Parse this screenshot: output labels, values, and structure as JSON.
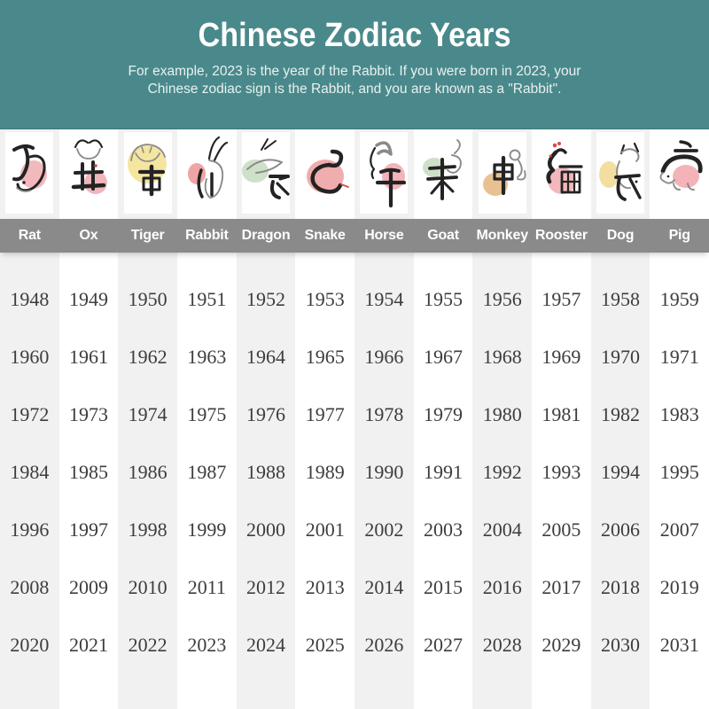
{
  "header": {
    "title": "Chinese Zodiac Years",
    "subtitle_line1": "For example, 2023 is the year of the Rabbit. If you were born in 2023, your",
    "subtitle_line2": "Chinese zodiac sign is the Rabbit, and you are known as a \"Rabbit\"."
  },
  "zodiac": {
    "animals": [
      {
        "name": "Rat",
        "character": "子",
        "blob_color": "#f2b9bd"
      },
      {
        "name": "Ox",
        "character": "丑",
        "blob_color": "#f0b6bb"
      },
      {
        "name": "Tiger",
        "character": "寅",
        "blob_color": "#f4e5a0"
      },
      {
        "name": "Rabbit",
        "character": "卯",
        "blob_color": "#efa5a5"
      },
      {
        "name": "Dragon",
        "character": "辰",
        "blob_color": "#cfe0c8"
      },
      {
        "name": "Snake",
        "character": "巳",
        "blob_color": "#efadad"
      },
      {
        "name": "Horse",
        "character": "午",
        "blob_color": "#f2b4b8"
      },
      {
        "name": "Goat",
        "character": "未",
        "blob_color": "#cfe0c8"
      },
      {
        "name": "Monkey",
        "character": "申",
        "blob_color": "#e8c193"
      },
      {
        "name": "Rooster",
        "character": "酉",
        "blob_color": "#f3b8bc"
      },
      {
        "name": "Dog",
        "character": "戌",
        "blob_color": "#f2dfa0"
      },
      {
        "name": "Pig",
        "character": "亥",
        "blob_color": "#f3b3b8"
      }
    ]
  },
  "chart_data": {
    "type": "table",
    "title": "Chinese Zodiac Years",
    "columns": [
      "Rat",
      "Ox",
      "Tiger",
      "Rabbit",
      "Dragon",
      "Snake",
      "Horse",
      "Goat",
      "Monkey",
      "Rooster",
      "Dog",
      "Pig"
    ],
    "rows": [
      [
        1948,
        1949,
        1950,
        1951,
        1952,
        1953,
        1954,
        1955,
        1956,
        1957,
        1958,
        1959
      ],
      [
        1960,
        1961,
        1962,
        1963,
        1964,
        1965,
        1966,
        1967,
        1968,
        1969,
        1970,
        1971
      ],
      [
        1972,
        1973,
        1974,
        1975,
        1976,
        1977,
        1978,
        1979,
        1980,
        1981,
        1982,
        1983
      ],
      [
        1984,
        1985,
        1986,
        1987,
        1988,
        1989,
        1990,
        1991,
        1992,
        1993,
        1994,
        1995
      ],
      [
        1996,
        1997,
        1998,
        1999,
        2000,
        2001,
        2002,
        2003,
        2004,
        2005,
        2006,
        2007
      ],
      [
        2008,
        2009,
        2010,
        2011,
        2012,
        2013,
        2014,
        2015,
        2016,
        2017,
        2018,
        2019
      ],
      [
        2020,
        2021,
        2022,
        2023,
        2024,
        2025,
        2026,
        2027,
        2028,
        2029,
        2030,
        2031
      ]
    ]
  },
  "colors": {
    "header_background": "#4a898b",
    "band_background": "#8a8a8a",
    "column_alt": "#f1f1f1",
    "column_white": "#ffffff",
    "year_text": "#3d3d3d",
    "header_text": "#ffffff",
    "ink_black": "#232323",
    "sketch_gray": "#8a8a8a",
    "accent_red": "#d84c44"
  }
}
